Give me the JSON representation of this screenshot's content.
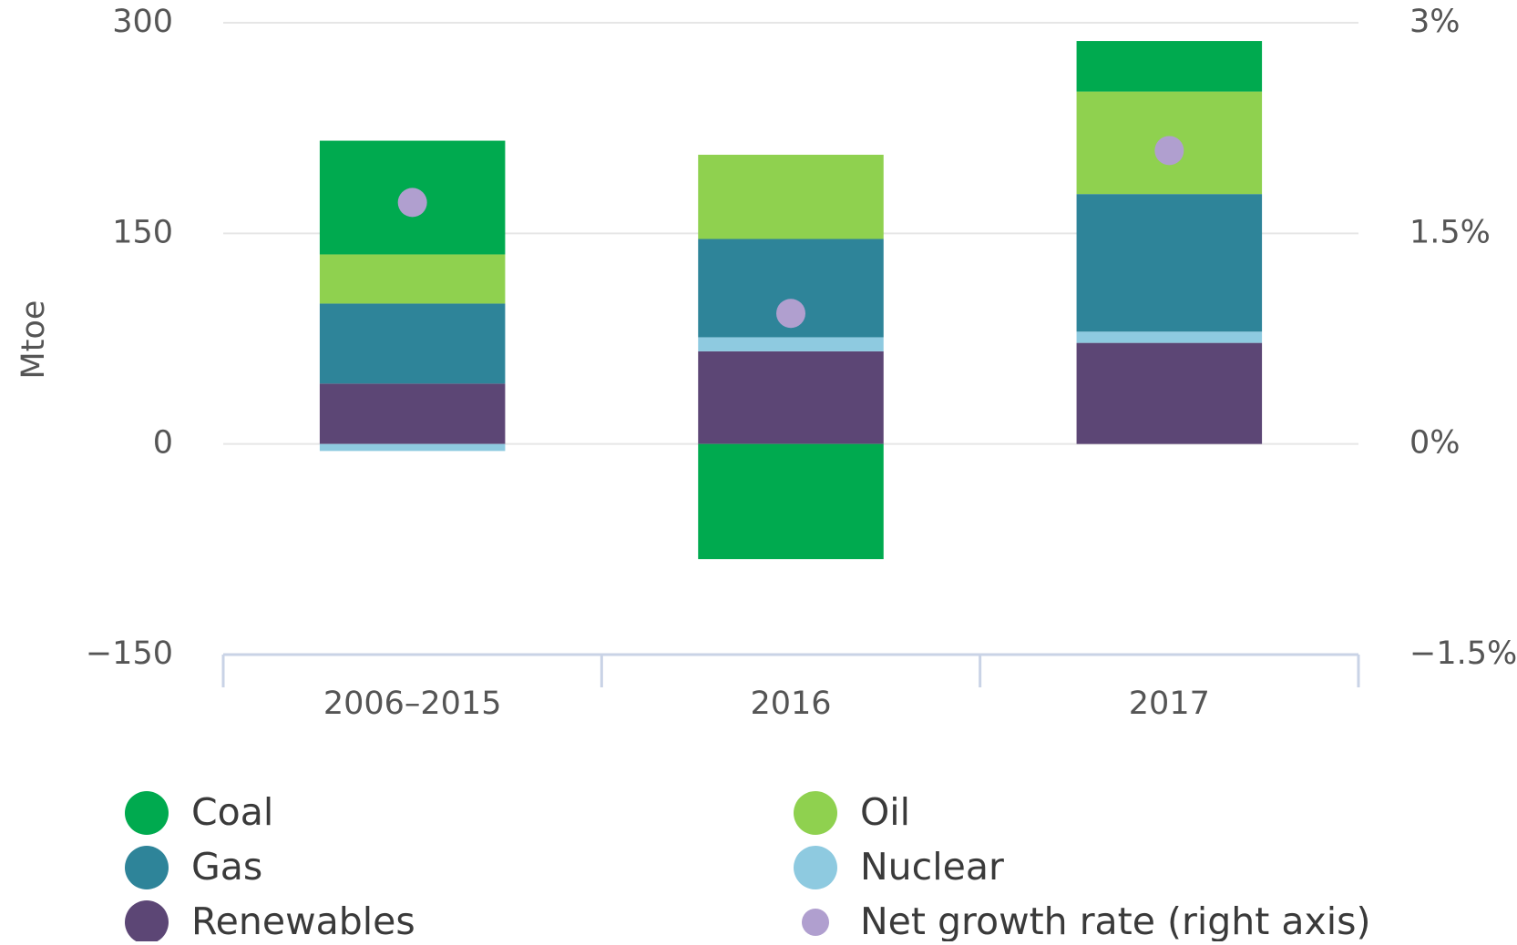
{
  "chart_data": {
    "type": "bar",
    "stacked": true,
    "y_label": "Mtoe",
    "categories": [
      "2006–2015",
      "2016",
      "2017"
    ],
    "series": [
      {
        "name": "Coal",
        "color": "#00aa4f",
        "values": [
          81,
          -82,
          36
        ]
      },
      {
        "name": "Oil",
        "color": "#8fd14f",
        "values": [
          35,
          60,
          73
        ]
      },
      {
        "name": "Gas",
        "color": "#2e8499",
        "values": [
          57,
          70,
          98
        ]
      },
      {
        "name": "Nuclear",
        "color": "#8ecae0",
        "values": [
          -5,
          10,
          8
        ]
      },
      {
        "name": "Renewables",
        "color": "#5c4675",
        "values": [
          43,
          66,
          72
        ]
      },
      {
        "name": "Net growth rate (right axis)",
        "color": "#b09fcf",
        "axis": "y2",
        "values": [
          1.72,
          0.93,
          2.09
        ]
      }
    ],
    "ylim": [
      -150,
      300
    ],
    "yticks": [
      {
        "value": -150,
        "label": "−150"
      },
      0,
      150,
      300
    ],
    "y2lim": [
      -1.5,
      3
    ],
    "y2ticks": [
      {
        "value": -1.5,
        "label": "−1.5%"
      },
      {
        "value": 0,
        "label": "0%"
      },
      {
        "value": 1.5,
        "label": "1.5%"
      },
      {
        "value": 3,
        "label": "3%"
      }
    ],
    "grid": true
  }
}
